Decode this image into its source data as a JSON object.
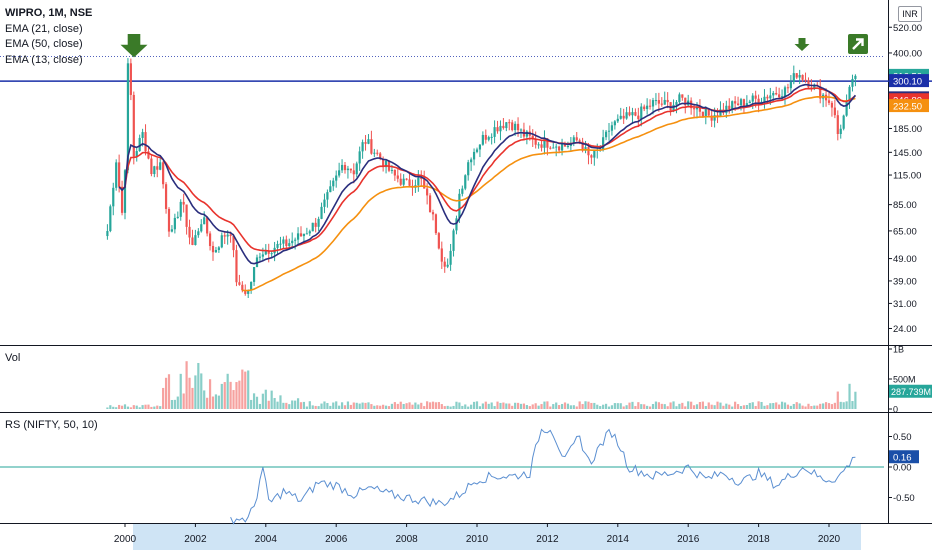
{
  "header": {
    "symbol": "WIPRO, 1M, NSE",
    "indicators": [
      "EMA (21, close)",
      "EMA (50, close)",
      "EMA (13, close)"
    ],
    "currency": "INR"
  },
  "colors": {
    "ema13": "#2a2e7d",
    "ema21": "#e8332d",
    "ema50": "#f5900f",
    "up": "#26a69a",
    "down": "#ef5350",
    "hline": "#1a2fa8",
    "arrow": "#3a7a28",
    "rs_line": "#5b8fd1",
    "rs_zero": "#26a69a"
  },
  "icons": {
    "top_arrows": "arrow-down-icon",
    "corner": "arrow-up-right-icon"
  },
  "volume_pane": {
    "title": "Vol",
    "ticks": [
      "1B",
      "500M",
      "0"
    ],
    "last_label": "287.739M"
  },
  "rs_pane": {
    "title": "RS (NIFTY, 50, 10)",
    "ticks": [
      "0.50",
      "0.00",
      "-0.50"
    ],
    "last_label": "0.16"
  },
  "price_axis": {
    "ticks": [
      "520.00",
      "400.00",
      "315.00",
      "245.00",
      "185.00",
      "145.00",
      "115.00",
      "85.00",
      "65.00",
      "49.00",
      "39.00",
      "31.00",
      "24.00"
    ],
    "tags": [
      {
        "label": "316.50",
        "value": 316.5,
        "color": "#26a69a"
      },
      {
        "label": "300.10",
        "value": 300.1,
        "color": "#1a2fa8"
      },
      {
        "label": "251.60",
        "value": 251.6,
        "color": "#2a2e7d"
      },
      {
        "label": "246.80",
        "value": 246.8,
        "color": "#e8332d"
      },
      {
        "label": "232.50",
        "value": 232.5,
        "color": "#f5900f"
      }
    ]
  },
  "time_axis": {
    "labels": [
      "2000",
      "2002",
      "2004",
      "2006",
      "2008",
      "2010",
      "2012",
      "2014",
      "2016",
      "2018",
      "2020"
    ]
  },
  "chart_data": {
    "type": "candlestick",
    "title": "WIPRO, 1M, NSE",
    "scale": "log",
    "ylim": [
      22,
      560
    ],
    "horizontal_line": 300.1,
    "price_path": [
      [
        1999.5,
        65
      ],
      [
        1999.75,
        135
      ],
      [
        1999.95,
        70
      ],
      [
        2000.1,
        420
      ],
      [
        2000.25,
        140
      ],
      [
        2000.5,
        175
      ],
      [
        2000.75,
        120
      ],
      [
        2001.0,
        130
      ],
      [
        2001.3,
        60
      ],
      [
        2001.6,
        90
      ],
      [
        2001.9,
        55
      ],
      [
        2002.2,
        75
      ],
      [
        2002.5,
        52
      ],
      [
        2002.8,
        62
      ],
      [
        2003.0,
        65
      ],
      [
        2003.2,
        36
      ],
      [
        2003.5,
        35
      ],
      [
        2003.8,
        52
      ],
      [
        2004.2,
        55
      ],
      [
        2004.6,
        57
      ],
      [
        2005.0,
        62
      ],
      [
        2005.4,
        70
      ],
      [
        2005.8,
        95
      ],
      [
        2006.2,
        130
      ],
      [
        2006.5,
        120
      ],
      [
        2006.8,
        165
      ],
      [
        2007.2,
        140
      ],
      [
        2007.6,
        115
      ],
      [
        2008.0,
        105
      ],
      [
        2008.4,
        110
      ],
      [
        2008.8,
        70
      ],
      [
        2009.0,
        50
      ],
      [
        2009.2,
        45
      ],
      [
        2009.5,
        95
      ],
      [
        2009.8,
        140
      ],
      [
        2010.2,
        170
      ],
      [
        2010.6,
        190
      ],
      [
        2010.9,
        200
      ],
      [
        2011.3,
        175
      ],
      [
        2011.7,
        160
      ],
      [
        2012.0,
        160
      ],
      [
        2012.5,
        155
      ],
      [
        2012.9,
        165
      ],
      [
        2013.2,
        135
      ],
      [
        2013.5,
        150
      ],
      [
        2013.8,
        190
      ],
      [
        2014.2,
        205
      ],
      [
        2014.6,
        215
      ],
      [
        2015.0,
        240
      ],
      [
        2015.5,
        235
      ],
      [
        2015.8,
        250
      ],
      [
        2016.2,
        232
      ],
      [
        2016.6,
        210
      ],
      [
        2016.9,
        220
      ],
      [
        2017.3,
        235
      ],
      [
        2017.7,
        245
      ],
      [
        2018.0,
        250
      ],
      [
        2018.4,
        265
      ],
      [
        2018.8,
        275
      ],
      [
        2019.1,
        330
      ],
      [
        2019.4,
        300
      ],
      [
        2019.7,
        270
      ],
      [
        2019.9,
        255
      ],
      [
        2020.1,
        235
      ],
      [
        2020.25,
        175
      ],
      [
        2020.45,
        215
      ],
      [
        2020.55,
        250
      ],
      [
        2020.65,
        310
      ],
      [
        2020.75,
        316.5
      ]
    ],
    "ema_last": {
      "EMA (13, close)": 251.6,
      "EMA (21, close)": 246.8,
      "EMA (50, close)": 232.5
    },
    "volume_ylim": [
      0,
      1000
    ],
    "volume_unit": "M",
    "rs_ylim": [
      -0.9,
      0.9
    ],
    "rs_path": [
      [
        2003.0,
        -0.85
      ],
      [
        2003.5,
        -0.85
      ],
      [
        2003.7,
        -0.6
      ],
      [
        2003.9,
        0.0
      ],
      [
        2004.1,
        -0.6
      ],
      [
        2004.5,
        -0.4
      ],
      [
        2005.0,
        -0.55
      ],
      [
        2005.5,
        -0.25
      ],
      [
        2006.0,
        -0.3
      ],
      [
        2006.5,
        -0.45
      ],
      [
        2007.0,
        -0.35
      ],
      [
        2007.5,
        -0.45
      ],
      [
        2008.0,
        -0.5
      ],
      [
        2008.5,
        -0.55
      ],
      [
        2009.0,
        -0.6
      ],
      [
        2009.5,
        -0.45
      ],
      [
        2010.0,
        -0.2
      ],
      [
        2010.5,
        -0.15
      ],
      [
        2011.0,
        -0.15
      ],
      [
        2011.5,
        -0.1
      ],
      [
        2011.8,
        0.6
      ],
      [
        2012.1,
        0.65
      ],
      [
        2012.5,
        0.1
      ],
      [
        2012.9,
        0.5
      ],
      [
        2013.2,
        0.05
      ],
      [
        2013.5,
        0.35
      ],
      [
        2013.8,
        0.6
      ],
      [
        2014.1,
        0.3
      ],
      [
        2014.3,
        0.0
      ],
      [
        2015.0,
        -0.15
      ],
      [
        2015.5,
        -0.1
      ],
      [
        2016.0,
        0.0
      ],
      [
        2016.5,
        -0.2
      ],
      [
        2017.0,
        -0.1
      ],
      [
        2017.5,
        -0.25
      ],
      [
        2018.0,
        -0.1
      ],
      [
        2018.5,
        -0.3
      ],
      [
        2019.0,
        -0.1
      ],
      [
        2019.3,
        0.0
      ],
      [
        2019.8,
        -0.2
      ],
      [
        2020.1,
        -0.2
      ],
      [
        2020.3,
        -0.15
      ],
      [
        2020.5,
        0.0
      ],
      [
        2020.75,
        0.16
      ]
    ]
  }
}
